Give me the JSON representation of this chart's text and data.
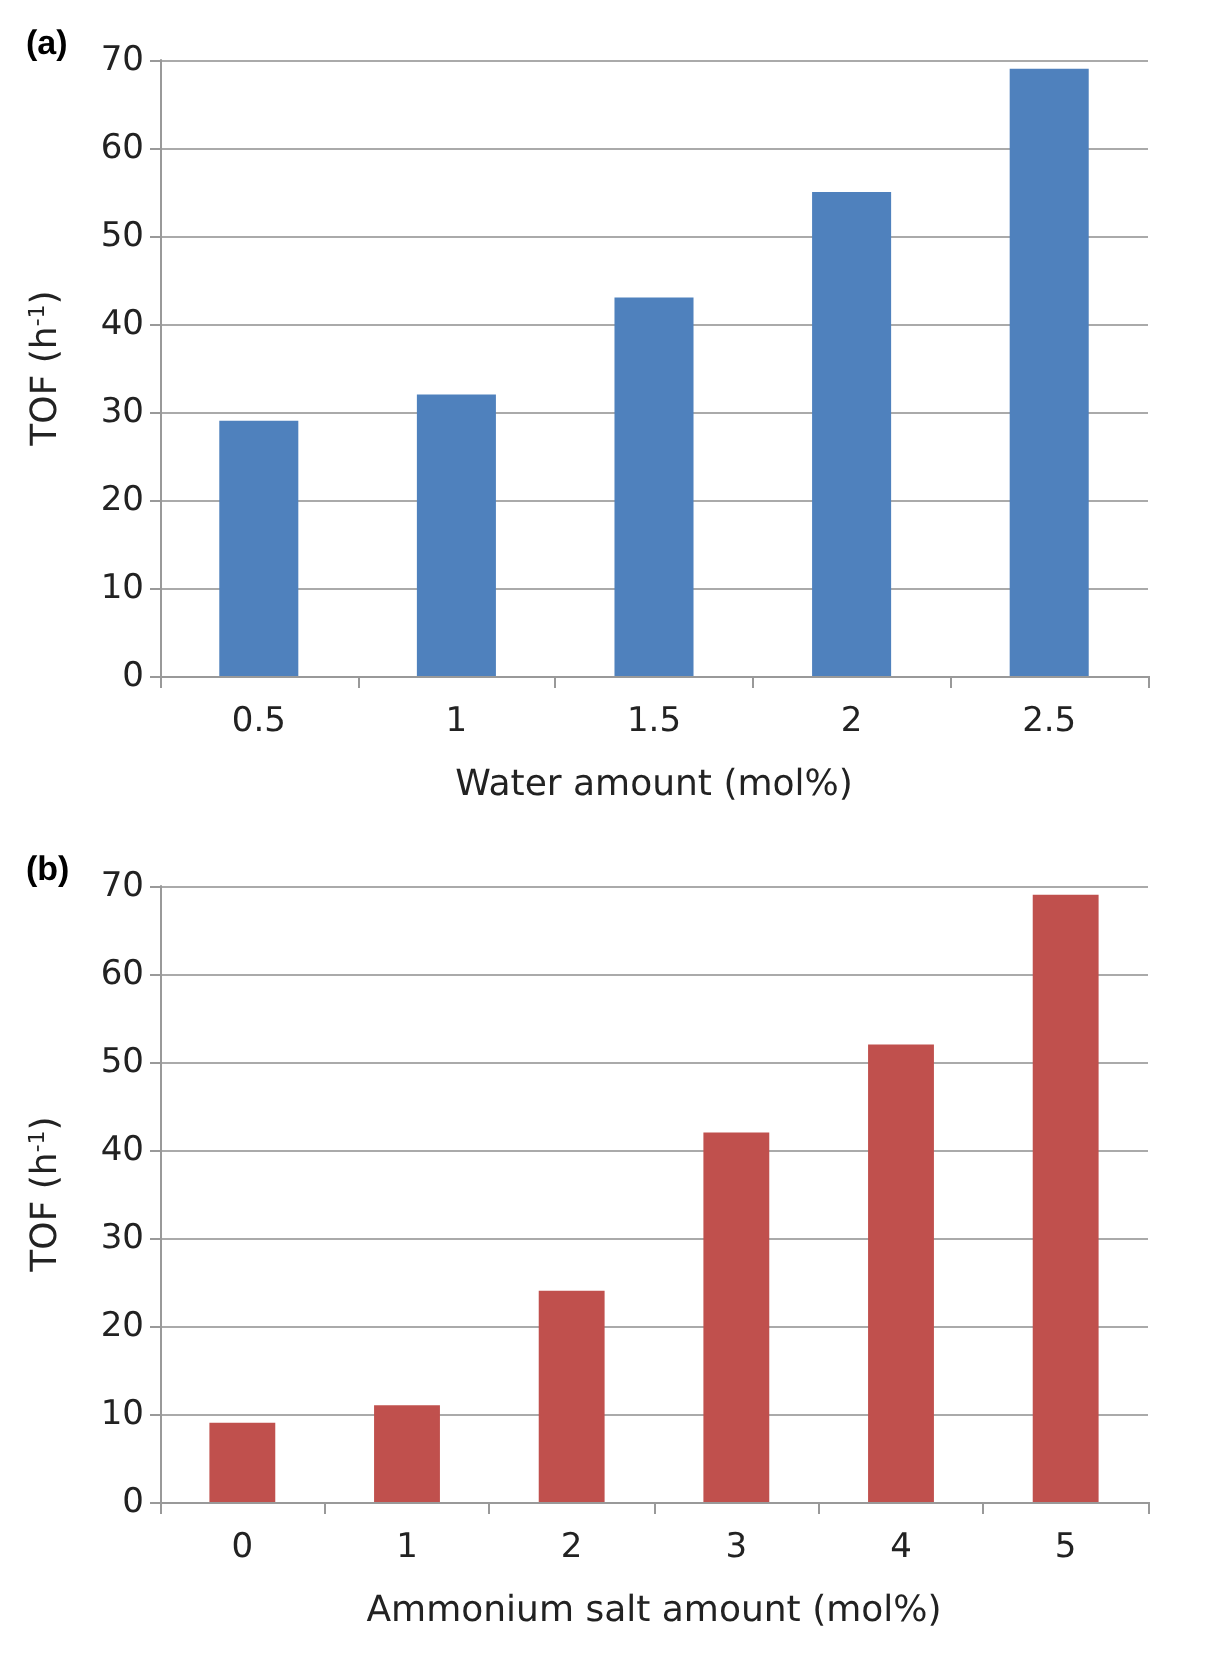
{
  "chart_data": [
    {
      "type": "bar",
      "title": "(a)",
      "xlabel": "Water amount (mol%)",
      "ylabel": "TOF (h$^{-1}$)",
      "categories": [
        "0.5",
        "1",
        "1.5",
        "2",
        "2.5"
      ],
      "series": [
        {
          "color": "#4f81bd",
          "values": [
            29,
            32,
            43,
            55,
            69
          ]
        }
      ],
      "ylim": [
        0,
        70
      ],
      "yticks": [
        0,
        10,
        20,
        30,
        40,
        50,
        60,
        70
      ],
      "grid": "y"
    },
    {
      "type": "bar",
      "title": "(b)",
      "xlabel": "Ammonium salt amount (mol%)",
      "ylabel": "TOF (h$^{-1}$)",
      "categories": [
        "0",
        "1",
        "2",
        "3",
        "4",
        "5"
      ],
      "series": [
        {
          "color": "#c0504d",
          "values": [
            9,
            11,
            24,
            42,
            52,
            69
          ]
        }
      ],
      "ylim": [
        0,
        70
      ],
      "yticks": [
        0,
        10,
        20,
        30,
        40,
        50,
        60,
        70
      ],
      "grid": "y"
    }
  ]
}
